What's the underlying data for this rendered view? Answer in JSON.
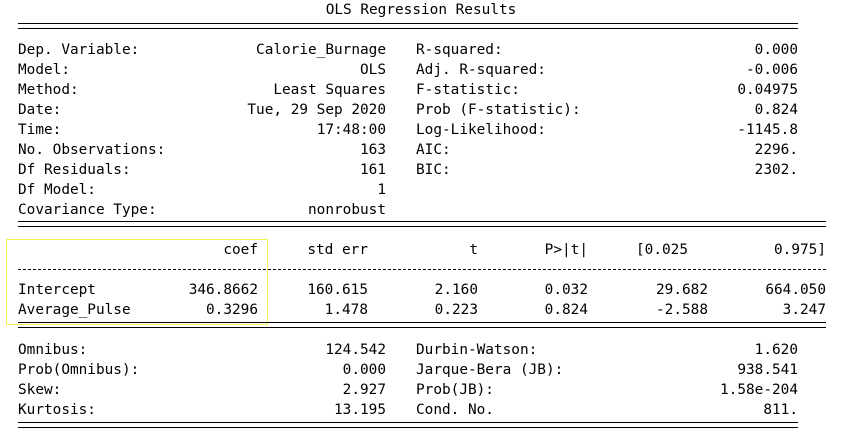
{
  "title": "OLS Regression Results",
  "header_left": [
    {
      "label": "Dep. Variable:",
      "value": "Calorie_Burnage"
    },
    {
      "label": "Model:",
      "value": "OLS"
    },
    {
      "label": "Method:",
      "value": "Least Squares"
    },
    {
      "label": "Date:",
      "value": "Tue, 29 Sep 2020"
    },
    {
      "label": "Time:",
      "value": "17:48:00"
    },
    {
      "label": "No. Observations:",
      "value": "163"
    },
    {
      "label": "Df Residuals:",
      "value": "161"
    },
    {
      "label": "Df Model:",
      "value": "1"
    },
    {
      "label": "Covariance Type:",
      "value": "nonrobust"
    }
  ],
  "header_right": [
    {
      "label": "R-squared:",
      "value": "0.000"
    },
    {
      "label": "Adj. R-squared:",
      "value": "-0.006"
    },
    {
      "label": "F-statistic:",
      "value": "0.04975"
    },
    {
      "label": "Prob (F-statistic):",
      "value": "0.824"
    },
    {
      "label": "Log-Likelihood:",
      "value": "-1145.8"
    },
    {
      "label": "AIC:",
      "value": "2296."
    },
    {
      "label": "BIC:",
      "value": "2302."
    }
  ],
  "coef_table": {
    "columns": [
      "coef",
      "std err",
      "t",
      "P>|t|",
      "[0.025",
      "0.975]"
    ],
    "rows": [
      {
        "name": "Intercept",
        "values": [
          "346.8662",
          "160.615",
          "2.160",
          "0.032",
          "29.682",
          "664.050"
        ]
      },
      {
        "name": "Average_Pulse",
        "values": [
          "0.3296",
          "1.478",
          "0.223",
          "0.824",
          "-2.588",
          "3.247"
        ]
      }
    ]
  },
  "diagnostics_left": [
    {
      "label": "Omnibus:",
      "value": "124.542"
    },
    {
      "label": "Prob(Omnibus):",
      "value": "0.000"
    },
    {
      "label": "Skew:",
      "value": "2.927"
    },
    {
      "label": "Kurtosis:",
      "value": "13.195"
    }
  ],
  "diagnostics_right": [
    {
      "label": "Durbin-Watson:",
      "value": "1.620"
    },
    {
      "label": "Jarque-Bera (JB):",
      "value": "938.541"
    },
    {
      "label": "Prob(JB):",
      "value": "1.58e-204"
    },
    {
      "label": "Cond. No.",
      "value": "811."
    }
  ],
  "highlight_color": "#f2f24a"
}
